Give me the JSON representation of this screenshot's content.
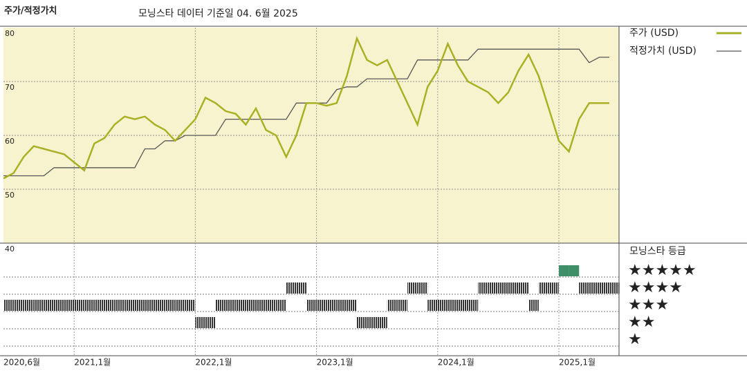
{
  "chart_data": {
    "type": "line",
    "title": "주가/적정가치",
    "subtitle": "모닝스타 데이터 기준일 04. 6월 2025",
    "x": [
      "2020-06",
      "2020-07",
      "2020-08",
      "2020-09",
      "2020-10",
      "2020-11",
      "2020-12",
      "2021-01",
      "2021-02",
      "2021-03",
      "2021-04",
      "2021-05",
      "2021-06",
      "2021-07",
      "2021-08",
      "2021-09",
      "2021-10",
      "2021-11",
      "2021-12",
      "2022-01",
      "2022-02",
      "2022-03",
      "2022-04",
      "2022-05",
      "2022-06",
      "2022-07",
      "2022-08",
      "2022-09",
      "2022-10",
      "2022-11",
      "2022-12",
      "2023-01",
      "2023-02",
      "2023-03",
      "2023-04",
      "2023-05",
      "2023-06",
      "2023-07",
      "2023-08",
      "2023-09",
      "2023-10",
      "2023-11",
      "2023-12",
      "2024-01",
      "2024-02",
      "2024-03",
      "2024-04",
      "2024-05",
      "2024-06",
      "2024-07",
      "2024-08",
      "2024-09",
      "2024-10",
      "2024-11",
      "2024-12",
      "2025-01",
      "2025-02",
      "2025-03",
      "2025-04",
      "2025-05",
      "2025-06"
    ],
    "series": [
      {
        "name": "주가 (USD)",
        "color": "#a9b024",
        "values": [
          52,
          53,
          56,
          58,
          57.5,
          57,
          56.5,
          55,
          53.5,
          58.5,
          59.5,
          62,
          63.5,
          63,
          63.5,
          62,
          61,
          59,
          61,
          63,
          67,
          66,
          64.5,
          64,
          62,
          65,
          61,
          60,
          56,
          60,
          66,
          66,
          65.5,
          66,
          71,
          78,
          74,
          73,
          74,
          70,
          66,
          62,
          69,
          72,
          77,
          73,
          70,
          69,
          68,
          66,
          68,
          72,
          75,
          71,
          65,
          59,
          57,
          63,
          66,
          66,
          66
        ]
      },
      {
        "name": "적정가치 (USD)",
        "color": "#555555",
        "values": [
          52.5,
          52.5,
          52.5,
          52.5,
          52.5,
          54,
          54,
          54,
          54,
          54,
          54,
          54,
          54,
          54,
          57.5,
          57.5,
          59,
          59,
          60,
          60,
          60,
          60,
          63,
          63,
          63,
          63,
          63,
          63,
          63,
          66,
          66,
          66,
          66,
          68.5,
          69,
          69,
          70.5,
          70.5,
          70.5,
          70.5,
          70.5,
          74,
          74,
          74,
          74,
          74,
          74,
          76,
          76,
          76,
          76,
          76,
          76,
          76,
          76,
          76,
          76,
          76,
          73.5,
          74.5,
          74.5
        ]
      }
    ],
    "xticks": [
      {
        "value": "2020-06",
        "label": "2020,6월"
      },
      {
        "value": "2021-01",
        "label": "2021,1월"
      },
      {
        "value": "2022-01",
        "label": "2022,1월"
      },
      {
        "value": "2023-01",
        "label": "2023,1월"
      },
      {
        "value": "2024-01",
        "label": "2024,1월"
      },
      {
        "value": "2025-01",
        "label": "2025,1월"
      }
    ],
    "ylim": [
      40,
      80
    ],
    "yticks": [
      40,
      50,
      60,
      70,
      80
    ],
    "grid": true,
    "background": "#f8f3cf",
    "ratings": {
      "title": "모닝스타 등급",
      "levels": [
        5,
        4,
        3,
        2,
        1
      ],
      "level_labels": [
        "★★★★★",
        "★★★★",
        "★★★",
        "★★",
        "★"
      ],
      "color": "#333333",
      "top_color": "#3e8e68",
      "values": [
        3,
        3,
        3,
        3,
        3,
        3,
        3,
        3,
        3,
        3,
        3,
        3,
        3,
        3,
        3,
        3,
        3,
        3,
        3,
        2,
        2,
        3,
        3,
        3,
        3,
        3,
        3,
        3,
        4,
        4,
        3,
        3,
        3,
        3,
        3,
        2,
        2,
        2,
        3,
        3,
        4,
        4,
        3,
        3,
        3,
        3,
        3,
        4,
        4,
        4,
        4,
        4,
        3,
        4,
        4,
        5,
        5,
        4,
        4,
        4,
        4
      ]
    }
  }
}
